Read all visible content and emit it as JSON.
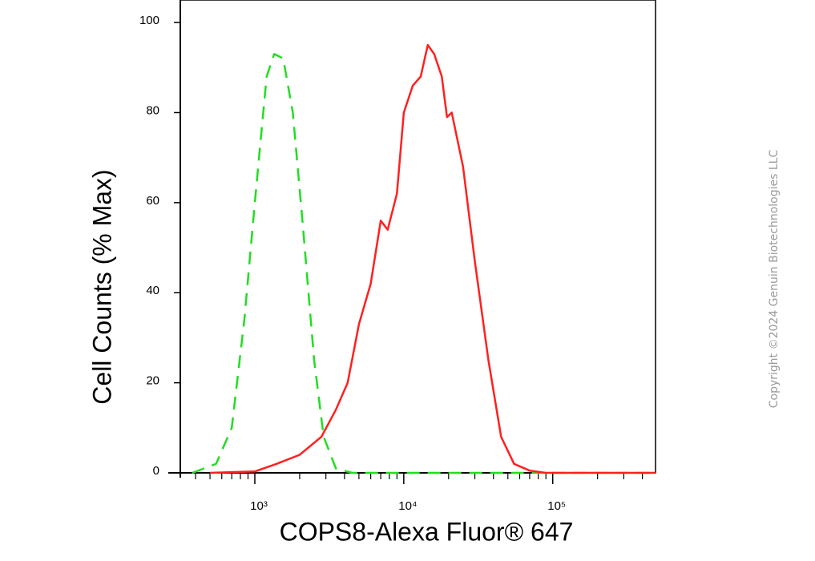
{
  "chart_data": {
    "type": "line",
    "x_label": "COPS8-Alexa Fluor® 647",
    "y_label": "Cell Counts (% Max)",
    "copyright": "Copyright ©2024 Genuin Biotechnologies LLC",
    "xscale": "log",
    "xlim": [
      316,
      490000
    ],
    "ylim": [
      0,
      105
    ],
    "xticks": [
      {
        "value": 1000,
        "label": "10³"
      },
      {
        "value": 10000,
        "label": "10⁴"
      },
      {
        "value": 100000,
        "label": "10⁵"
      }
    ],
    "xticks_minor": [
      400,
      500,
      600,
      700,
      800,
      900,
      2000,
      3000,
      4000,
      5000,
      6000,
      7000,
      8000,
      9000,
      20000,
      30000,
      40000,
      50000,
      60000,
      70000,
      80000,
      90000,
      200000,
      300000,
      400000
    ],
    "yticks": [
      0,
      20,
      40,
      60,
      80,
      100
    ],
    "series": [
      {
        "color": "#22dd22",
        "dashed": true,
        "x": [
          380,
          550,
          700,
          850,
          1000,
          1200,
          1350,
          1550,
          1800,
          2100,
          2500,
          2900,
          3500,
          4500,
          490000
        ],
        "values": [
          0,
          2,
          10,
          34,
          60,
          88,
          93,
          92,
          80,
          55,
          25,
          8,
          1,
          0,
          0
        ]
      },
      {
        "color": "#ff2020",
        "dashed": false,
        "x": [
          500,
          1000,
          1400,
          2000,
          2800,
          3500,
          4200,
          5000,
          6000,
          7000,
          7800,
          9000,
          10000,
          11500,
          13000,
          14500,
          16000,
          18000,
          19500,
          21000,
          25000,
          30000,
          37000,
          45000,
          55000,
          70000,
          90000,
          490000
        ],
        "values": [
          0,
          0.3,
          2,
          4,
          8,
          14,
          20,
          33,
          42,
          56,
          54,
          62,
          80,
          86,
          88,
          95,
          93,
          88,
          79,
          80,
          68,
          47,
          25,
          8,
          2,
          0.5,
          0,
          0
        ]
      }
    ]
  }
}
